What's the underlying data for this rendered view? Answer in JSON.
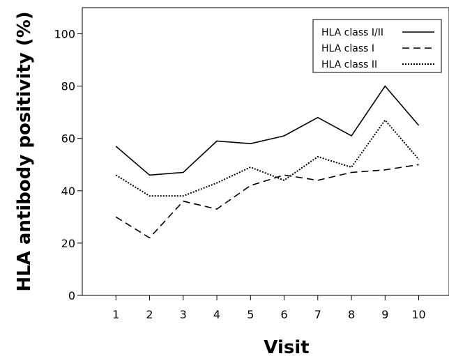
{
  "chart_data": {
    "type": "line",
    "title": "",
    "xlabel": "Visit",
    "ylabel": "HLA antibody positivity (%)",
    "x": [
      1,
      2,
      3,
      4,
      5,
      6,
      7,
      8,
      9,
      10
    ],
    "ylim": [
      0,
      110
    ],
    "xlim": [
      0,
      10.9
    ],
    "yticks": [
      0,
      20,
      40,
      60,
      80,
      100
    ],
    "xticks": [
      1,
      2,
      3,
      4,
      5,
      6,
      7,
      8,
      9,
      10
    ],
    "grid": false,
    "legend_position": "top-right",
    "series": [
      {
        "name": "HLA class I/II",
        "style": "solid",
        "color": "#000000",
        "values": [
          57,
          46,
          47,
          59,
          58,
          61,
          68,
          61,
          80,
          65
        ]
      },
      {
        "name": "HLA class I",
        "style": "dashed",
        "color": "#000000",
        "values": [
          30,
          22,
          36,
          33,
          42,
          46,
          44,
          47,
          48,
          50
        ]
      },
      {
        "name": "HLA class II",
        "style": "dotted",
        "color": "#000000",
        "values": [
          46,
          38,
          38,
          43,
          49,
          44,
          53,
          49,
          67,
          52
        ]
      }
    ]
  }
}
